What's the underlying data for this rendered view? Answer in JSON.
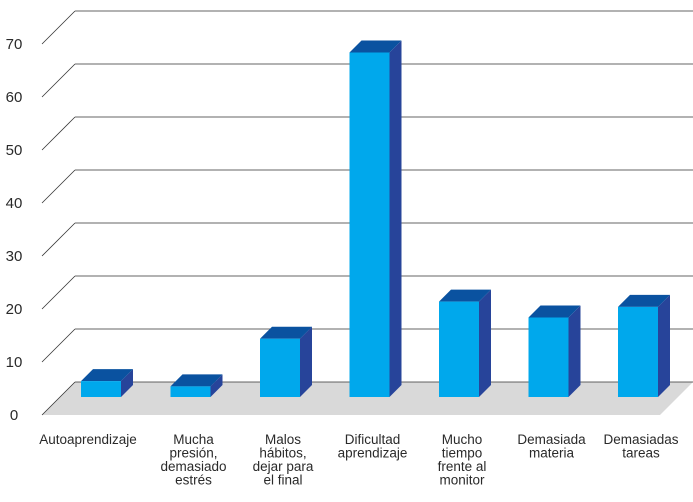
{
  "chart_data": {
    "type": "bar",
    "title": "",
    "xlabel": "",
    "ylabel": "",
    "ylim": [
      0,
      80
    ],
    "yticks": [
      0,
      10,
      20,
      30,
      40,
      50,
      60,
      70
    ],
    "grid": true,
    "three_d": true,
    "categories": [
      "Autoaprendizaje",
      "Mucha presión, demasiado estrés",
      "Malos hábitos, dejar para el final",
      "Dificultad aprendizaje",
      "Mucho tiempo frente al monitor",
      "Demasiada materia",
      "Demasiadas tareas"
    ],
    "category_lines": [
      [
        "Autoaprendizaje"
      ],
      [
        "Mucha",
        "presión,",
        "demasiado",
        "estrés"
      ],
      [
        "Malos",
        "hábitos,",
        "dejar para",
        "el final"
      ],
      [
        "Dificultad",
        "aprendizaje"
      ],
      [
        "Mucho",
        "tiempo",
        "frente al",
        "monitor"
      ],
      [
        "Demasiada",
        "materia"
      ],
      [
        "Demasiadas",
        "tareas"
      ]
    ],
    "values": [
      3,
      2,
      11,
      65,
      18,
      15,
      17
    ],
    "colors": {
      "bar_front": "#00a8ec",
      "bar_top": "#0a52a0",
      "bar_side": "#27449a",
      "floor": "#d9d9d9",
      "grid": "#333333"
    }
  }
}
